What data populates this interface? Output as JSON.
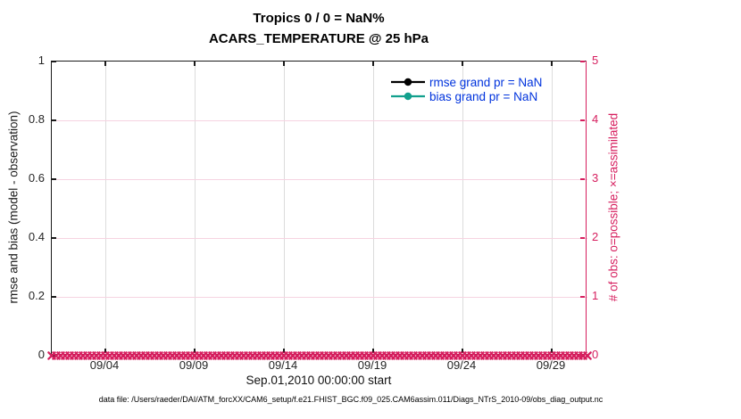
{
  "figure": {
    "title": "Tropics 0 / 0 = NaN%",
    "subtitle": "ACARS_TEMPERATURE @ 25 hPa",
    "xlabel": "Sep.01,2010 00:00:00 start",
    "ylabel_left": "rmse and bias (model - observation)",
    "ylabel_right": "# of obs: o=possible; ×=assimilated",
    "footer": "data file: /Users/raeder/DAI/ATM_forcXX/CAM6_setup/f.e21.FHIST_BGC.f09_025.CAM6assim.011/Diags_NTrS_2010-09/obs_diag_output.nc"
  },
  "colors": {
    "accent_pink": "#d61e5e",
    "grid_pink": "#f6d3e1",
    "grid_gray": "#dcdcdc",
    "axis_dark": "#1a1a1a",
    "tick_label_dark": "#262626",
    "legend_text_blue": "#0033dd",
    "rmse_black": "#000000",
    "bias_teal": "#12a08d"
  },
  "legend": {
    "entries": [
      {
        "label": "rmse grand pr = NaN",
        "color": "#000000"
      },
      {
        "label": "bias grand pr = NaN",
        "color": "#12a08d"
      }
    ]
  },
  "chart_data": {
    "type": "line",
    "title": "Tropics 0 / 0 = NaN%",
    "subtitle": "ACARS_TEMPERATURE @ 25 hPa",
    "xlabel": "Sep.01,2010 00:00:00 start",
    "grid": true,
    "legend_position": "upper-right-inside",
    "x_axis": {
      "start": "Sep.01,2010 00:00:00",
      "total_days": 30,
      "tick_days": [
        3,
        8,
        13,
        18,
        23,
        28
      ],
      "tick_labels": [
        "09/04",
        "09/09",
        "09/14",
        "09/19",
        "09/24",
        "09/29"
      ]
    },
    "left_axis": {
      "label": "rmse and bias (model - observation)",
      "range": [
        0,
        1
      ],
      "ticks": [
        0,
        0.2,
        0.4,
        0.6,
        0.8,
        1
      ],
      "tick_labels": [
        "0",
        "0.2",
        "0.4",
        "0.6",
        "0.8",
        "1"
      ],
      "color": "#1a1a1a"
    },
    "right_axis": {
      "label": "# of obs: o=possible; ×=assimilated",
      "range": [
        0,
        5
      ],
      "ticks": [
        0,
        1,
        2,
        3,
        4,
        5
      ],
      "tick_labels": [
        "0",
        "1",
        "2",
        "3",
        "4",
        "5"
      ],
      "color": "#d61e5e"
    },
    "series": [
      {
        "name": "rmse grand pr = NaN",
        "style": "line-with-dot",
        "color": "#000000",
        "values": null
      },
      {
        "name": "bias grand pr = NaN",
        "style": "line-with-dot",
        "color": "#12a08d",
        "values": null
      },
      {
        "name": "assimilated obs count",
        "style": "x-markers",
        "color": "#d61e5e",
        "n_markers": 121,
        "constant_value": 0
      }
    ]
  }
}
